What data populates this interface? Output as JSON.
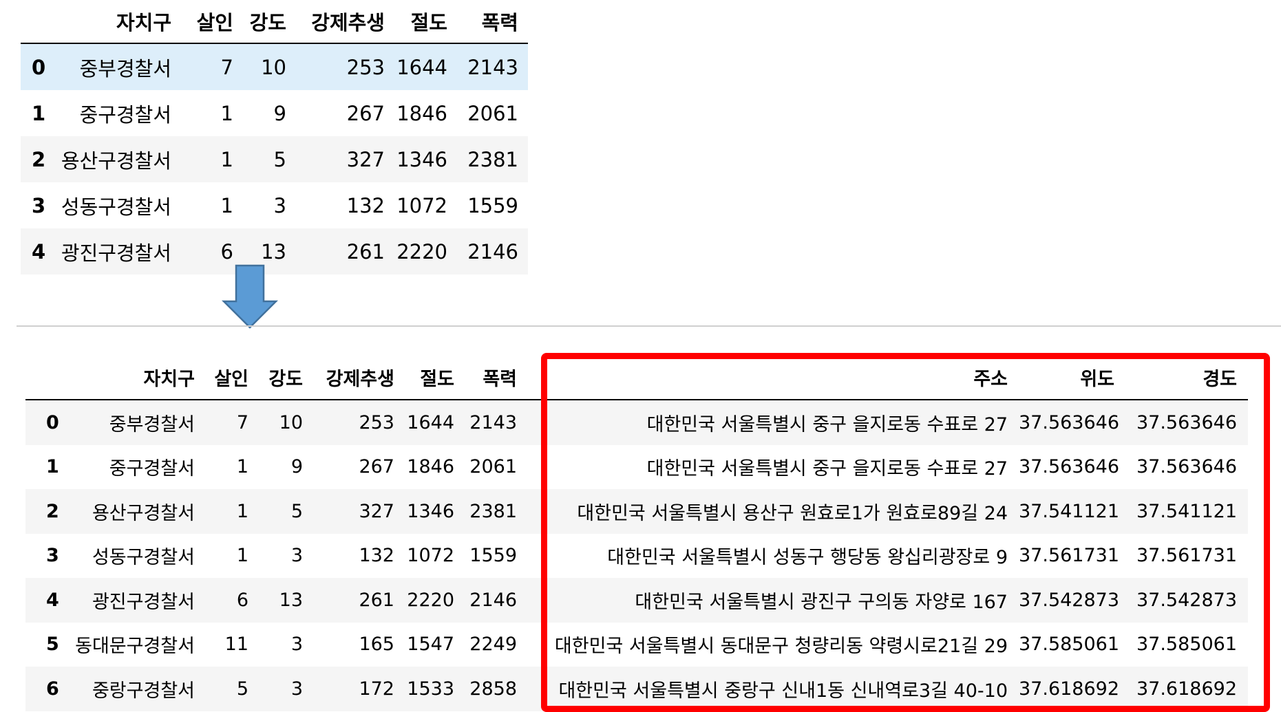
{
  "top_table": {
    "columns": [
      "",
      "자치구",
      "살인",
      "강도",
      "강제추생",
      "절도",
      "폭력"
    ],
    "rows": [
      {
        "index": "0",
        "cells": [
          "중부경찰서",
          "7",
          "10",
          "253",
          "1644",
          "2143"
        ]
      },
      {
        "index": "1",
        "cells": [
          "중구경찰서",
          "1",
          "9",
          "267",
          "1846",
          "2061"
        ]
      },
      {
        "index": "2",
        "cells": [
          "용산구경찰서",
          "1",
          "5",
          "327",
          "1346",
          "2381"
        ]
      },
      {
        "index": "3",
        "cells": [
          "성동구경찰서",
          "1",
          "3",
          "132",
          "1072",
          "1559"
        ]
      },
      {
        "index": "4",
        "cells": [
          "광진구경찰서",
          "6",
          "13",
          "261",
          "2220",
          "2146"
        ]
      }
    ]
  },
  "bottom_table": {
    "columns": [
      "",
      "자치구",
      "살인",
      "강도",
      "강제추생",
      "절도",
      "폭력",
      "주소",
      "위도",
      "경도"
    ],
    "rows": [
      {
        "index": "0",
        "cells": [
          "중부경찰서",
          "7",
          "10",
          "253",
          "1644",
          "2143",
          "대한민국 서울특별시 중구 을지로동 수표로 27",
          "37.563646",
          "37.563646"
        ]
      },
      {
        "index": "1",
        "cells": [
          "중구경찰서",
          "1",
          "9",
          "267",
          "1846",
          "2061",
          "대한민국 서울특별시 중구 을지로동 수표로 27",
          "37.563646",
          "37.563646"
        ]
      },
      {
        "index": "2",
        "cells": [
          "용산구경찰서",
          "1",
          "5",
          "327",
          "1346",
          "2381",
          "대한민국 서울특별시 용산구 원효로1가 원효로89길 24",
          "37.541121",
          "37.541121"
        ]
      },
      {
        "index": "3",
        "cells": [
          "성동구경찰서",
          "1",
          "3",
          "132",
          "1072",
          "1559",
          "대한민국 서울특별시 성동구 행당동 왕십리광장로 9",
          "37.561731",
          "37.561731"
        ]
      },
      {
        "index": "4",
        "cells": [
          "광진구경찰서",
          "6",
          "13",
          "261",
          "2220",
          "2146",
          "대한민국 서울특별시 광진구 구의동 자양로 167",
          "37.542873",
          "37.542873"
        ]
      },
      {
        "index": "5",
        "cells": [
          "동대문구경찰서",
          "11",
          "3",
          "165",
          "1547",
          "2249",
          "대한민국 서울특별시 동대문구 청량리동 약령시로21길 29",
          "37.585061",
          "37.585061"
        ]
      },
      {
        "index": "6",
        "cells": [
          "중랑구경찰서",
          "5",
          "3",
          "172",
          "1533",
          "2858",
          "대한민국 서울특별시 중랑구 신내1동 신내역로3길 40-10",
          "37.618692",
          "37.618692"
        ]
      }
    ]
  },
  "colors": {
    "highlight_border": "#ff0000",
    "arrow_fill": "#5b9bd5",
    "arrow_stroke": "#41719c",
    "hover_row": "#ddeefa",
    "stripe_row": "#f5f5f5"
  },
  "icons": {
    "arrow": "down-arrow-icon"
  }
}
